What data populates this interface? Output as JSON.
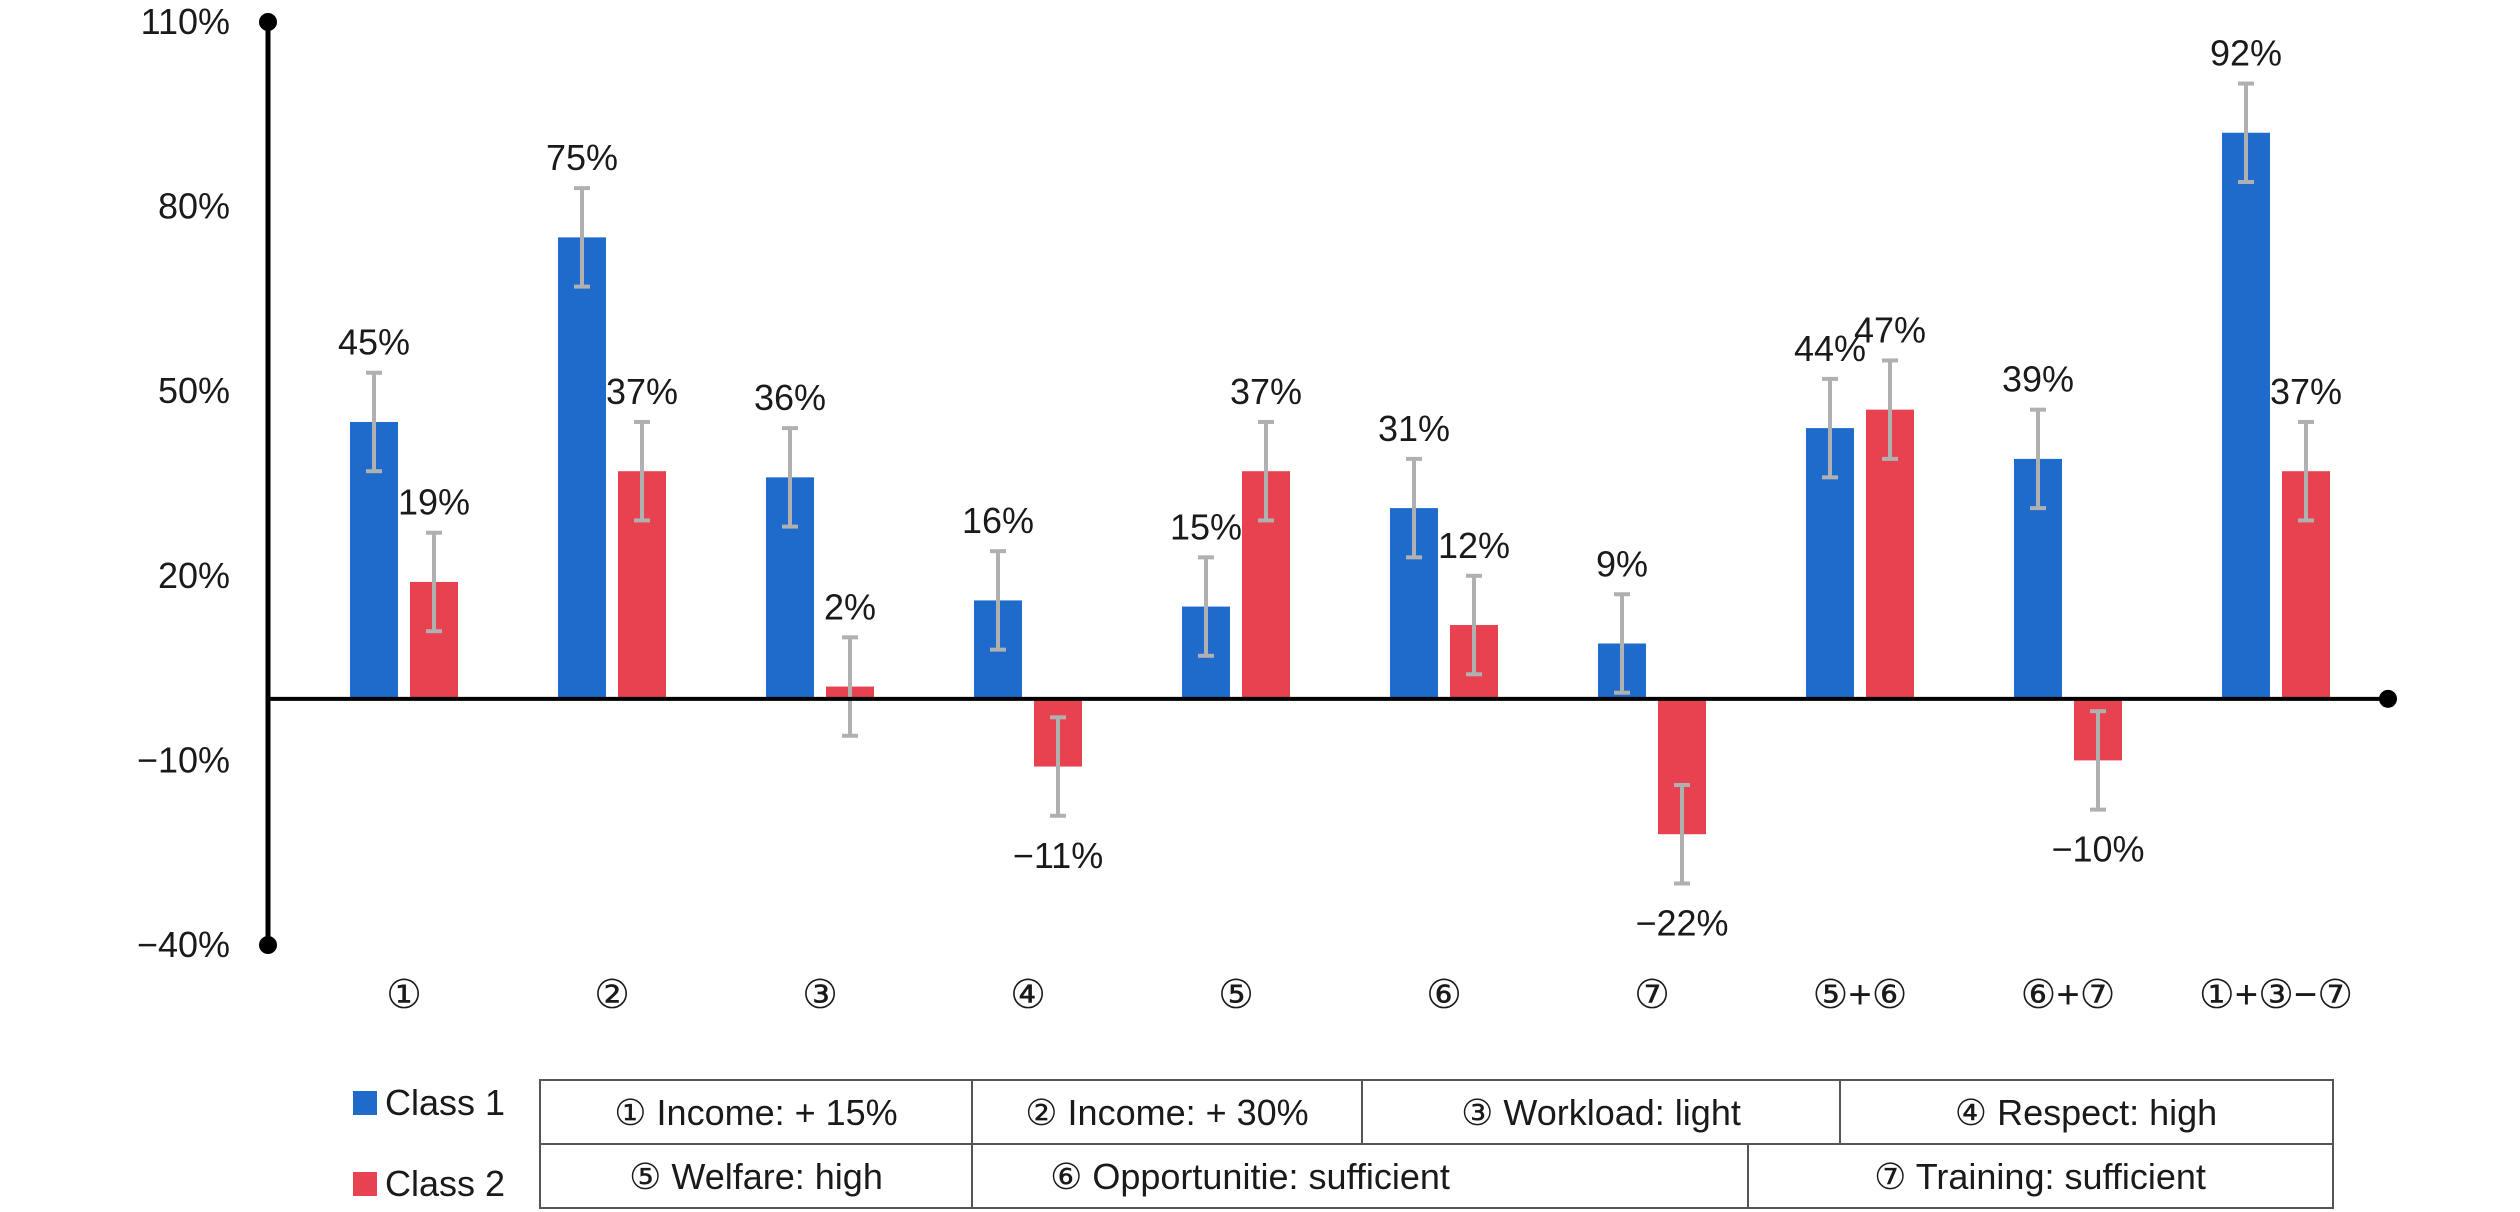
{
  "chart_data": {
    "type": "bar",
    "categories": [
      "①",
      "②",
      "③",
      "④",
      "⑤",
      "⑥",
      "⑦",
      "⑤+⑥",
      "⑥+⑦",
      "①+③−⑦"
    ],
    "series": [
      {
        "name": "Class 1",
        "values": [
          45,
          75,
          36,
          16,
          15,
          31,
          9,
          44,
          39,
          92
        ],
        "labels": [
          "45%",
          "75%",
          "36%",
          "16%",
          "15%",
          "31%",
          "9%",
          "44%",
          "39%",
          "92%"
        ],
        "error": [
          8,
          8,
          8,
          8,
          8,
          8,
          8,
          8,
          8,
          8
        ],
        "color": "#1f6bcc"
      },
      {
        "name": "Class 2",
        "values": [
          19,
          37,
          2,
          -11,
          37,
          12,
          -22,
          47,
          -10,
          37
        ],
        "labels": [
          "19%",
          "37%",
          "2%",
          "−11%",
          "37%",
          "12%",
          "−22%",
          "47%",
          "−10%",
          "37%"
        ],
        "error": [
          8,
          8,
          8,
          8,
          8,
          8,
          8,
          8,
          8,
          8
        ],
        "color": "#e8414f"
      }
    ],
    "yticks": [
      110,
      80,
      50,
      20,
      -10,
      -40
    ],
    "ytick_labels": [
      "110%",
      "80%",
      "50%",
      "20%",
      "−10%",
      "−40%"
    ],
    "ylim": [
      -40,
      110
    ],
    "grid": false,
    "legend_position": "bottom-left",
    "error_bar_color": "#b0b0b0"
  },
  "factor_table": {
    "rows": [
      [
        "① Income: + 15%",
        "② Income: + 30%",
        "③ Workload: light",
        "④ Respect: high"
      ],
      [
        "⑤ Welfare: high",
        "⑥ Opportunitie: sufficient",
        "⑦ Training: sufficient"
      ]
    ]
  }
}
